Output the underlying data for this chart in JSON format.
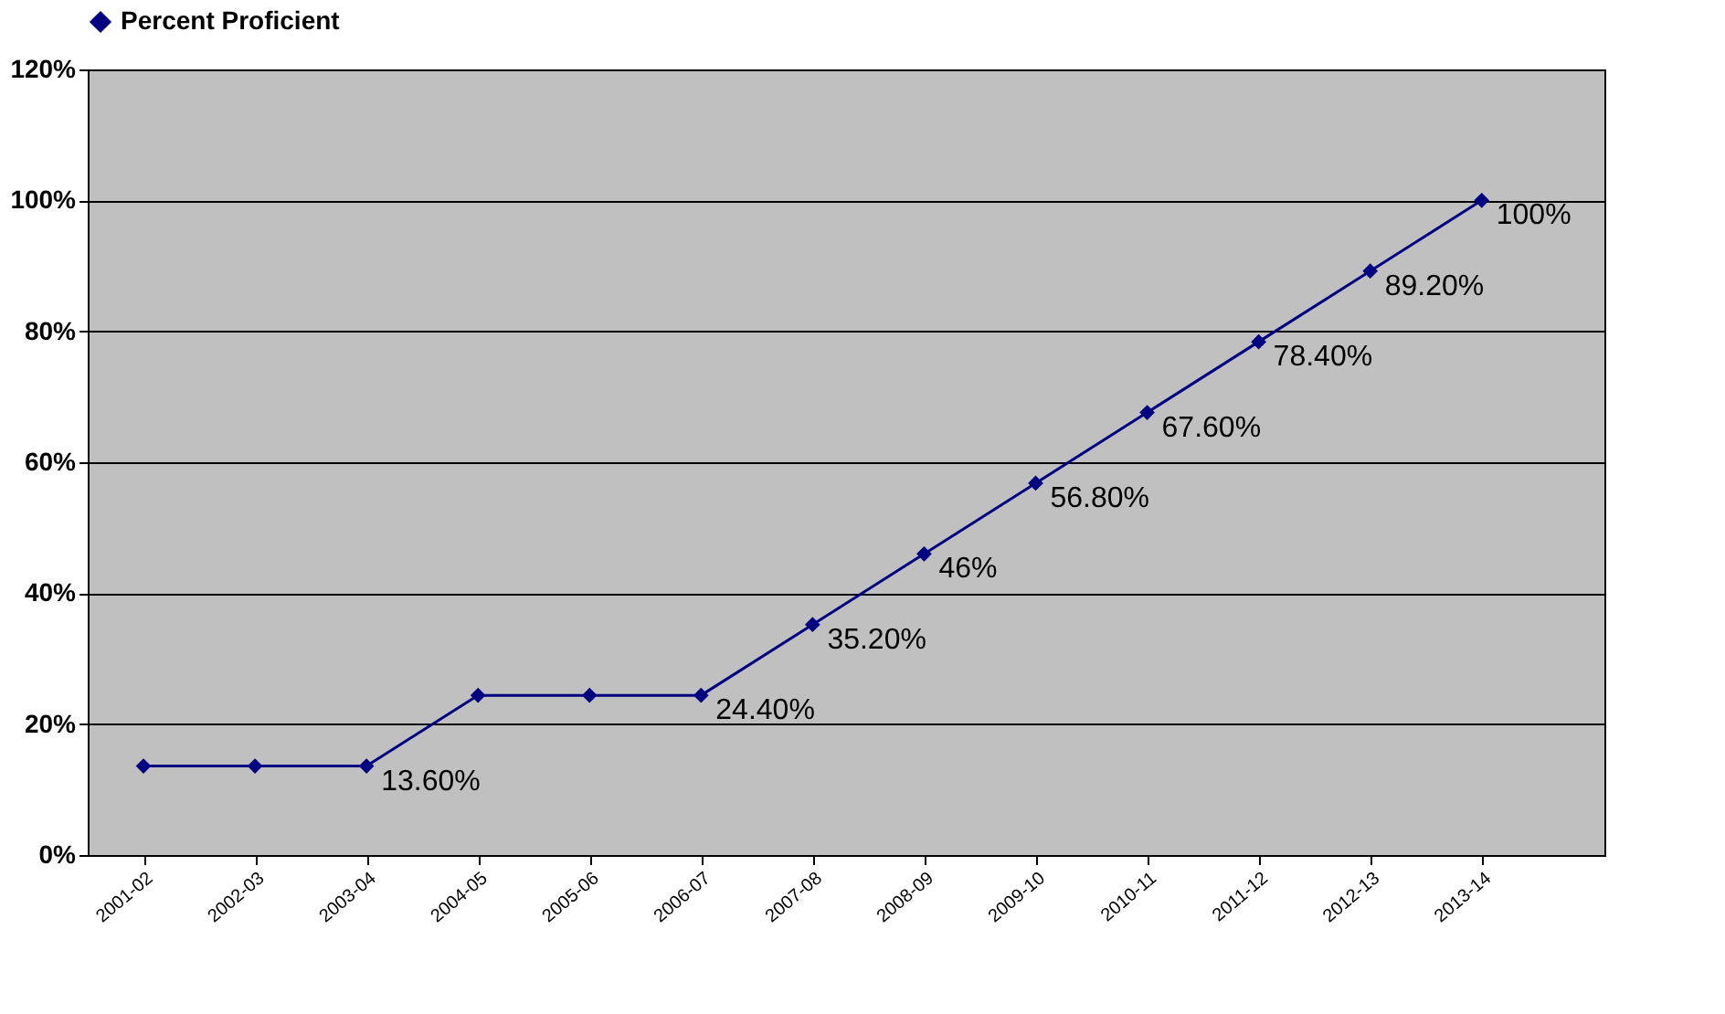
{
  "chart_data": {
    "type": "line",
    "categories": [
      "2001-02",
      "2002-03",
      "2003-04",
      "2004-05",
      "2005-06",
      "2006-07",
      "2007-08",
      "2008-09",
      "2009-10",
      "2010-11",
      "2011-12",
      "2012-13",
      "2013-14"
    ],
    "series": [
      {
        "name": "Percent Proficient",
        "color": "#000080",
        "values": [
          13.6,
          13.6,
          13.6,
          24.4,
          24.4,
          24.4,
          35.2,
          46,
          56.8,
          67.6,
          78.4,
          89.2,
          100
        ],
        "value_labels": [
          null,
          null,
          "13.60%",
          null,
          null,
          "24.40%",
          "35.20%",
          "46%",
          "56.80%",
          "67.60%",
          "78.40%",
          "89.20%",
          "100%"
        ]
      }
    ],
    "ylim": [
      0,
      120
    ],
    "yticks": [
      {
        "value": 0,
        "label": "0%"
      },
      {
        "value": 20,
        "label": "20%"
      },
      {
        "value": 40,
        "label": "40%"
      },
      {
        "value": 60,
        "label": "60%"
      },
      {
        "value": 80,
        "label": "80%"
      },
      {
        "value": 100,
        "label": "100%"
      },
      {
        "value": 120,
        "label": "120%"
      }
    ],
    "grid": "y",
    "legend": "top",
    "marker": "diamond",
    "line_style": "solid"
  }
}
